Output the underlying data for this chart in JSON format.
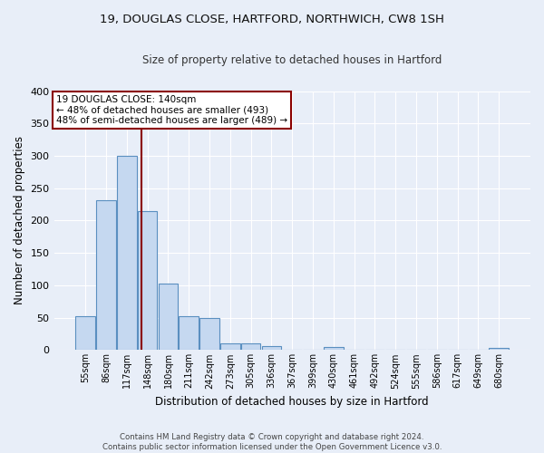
{
  "title1": "19, DOUGLAS CLOSE, HARTFORD, NORTHWICH, CW8 1SH",
  "title2": "Size of property relative to detached houses in Hartford",
  "xlabel": "Distribution of detached houses by size in Hartford",
  "ylabel": "Number of detached properties",
  "categories": [
    "55sqm",
    "86sqm",
    "117sqm",
    "148sqm",
    "180sqm",
    "211sqm",
    "242sqm",
    "273sqm",
    "305sqm",
    "336sqm",
    "367sqm",
    "399sqm",
    "430sqm",
    "461sqm",
    "492sqm",
    "524sqm",
    "555sqm",
    "586sqm",
    "617sqm",
    "649sqm",
    "680sqm"
  ],
  "values": [
    53,
    232,
    300,
    215,
    103,
    52,
    49,
    10,
    10,
    6,
    0,
    0,
    5,
    0,
    0,
    0,
    0,
    0,
    0,
    0,
    3
  ],
  "bar_color": "#c5d8f0",
  "bar_edge_color": "#5a8fc0",
  "vline_x": 2.72,
  "vline_color": "#8b0000",
  "annotation_line1": "19 DOUGLAS CLOSE: 140sqm",
  "annotation_line2": "← 48% of detached houses are smaller (493)",
  "annotation_line3": "48% of semi-detached houses are larger (489) →",
  "annotation_box_color": "#ffffff",
  "annotation_box_edge_color": "#8b0000",
  "background_color": "#e8eef8",
  "grid_color": "#ffffff",
  "ylim": [
    0,
    400
  ],
  "yticks": [
    0,
    50,
    100,
    150,
    200,
    250,
    300,
    350,
    400
  ],
  "title1_fontsize": 9.5,
  "title2_fontsize": 8.5,
  "footer": "Contains HM Land Registry data © Crown copyright and database right 2024.\nContains public sector information licensed under the Open Government Licence v3.0."
}
